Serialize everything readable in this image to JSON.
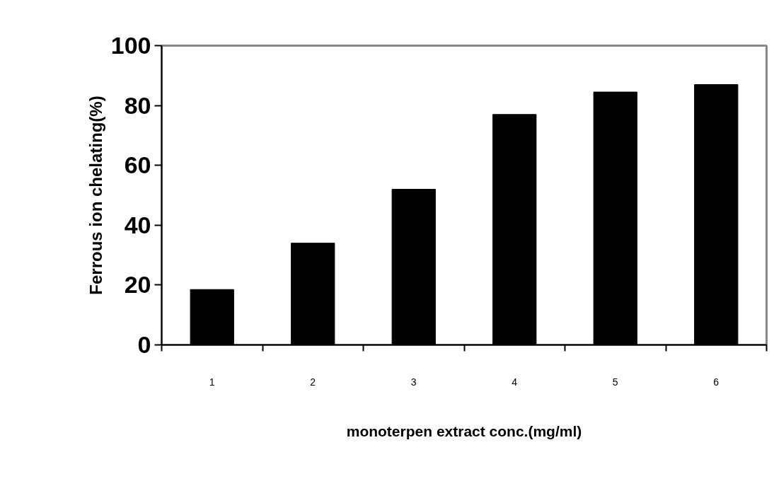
{
  "chart_data": {
    "type": "bar",
    "xlabel": "monoterpen extract conc.(mg/ml)",
    "ylabel": "Ferrous ion chelating(%)",
    "categories": [
      "1",
      "2",
      "3",
      "4",
      "5",
      "6"
    ],
    "values": [
      18.5,
      34,
      52,
      77,
      84.5,
      87
    ],
    "color": "#000000",
    "ylim": [
      0,
      100
    ],
    "yticks": [
      0,
      20,
      40,
      60,
      80,
      100
    ],
    "grid": false
  }
}
